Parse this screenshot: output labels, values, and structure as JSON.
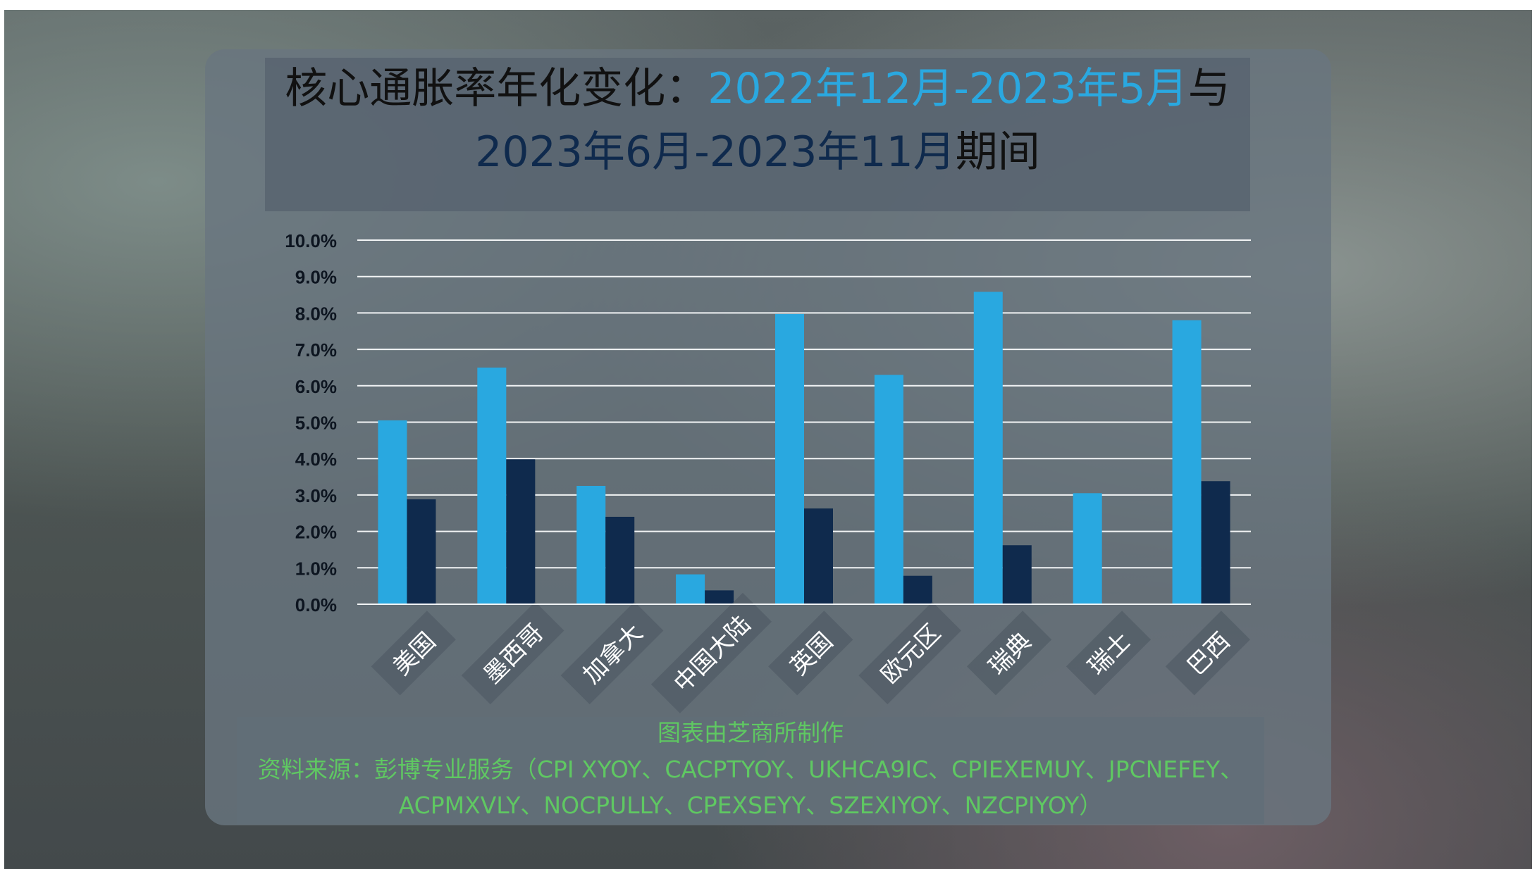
{
  "title": {
    "line1_prefix": "核心通胀率年化变化：",
    "line1_period1": "2022年12月-2023年5月",
    "line1_connector": "与",
    "line2_period2": "2023年6月-2023年11月",
    "line2_suffix": "期间"
  },
  "colors": {
    "period1": "#29a8e0",
    "period2": "#0f2a4d",
    "axis_label": "#0d1520",
    "source_text": "#5fc862"
  },
  "chart_data": {
    "type": "bar",
    "categories": [
      "美国",
      "墨西哥",
      "加拿大",
      "中国大陆",
      "英国",
      "欧元区",
      "瑞典",
      "瑞士",
      "巴西"
    ],
    "series": [
      {
        "values": [
          5.05,
          6.5,
          3.25,
          0.82,
          7.97,
          6.3,
          8.58,
          3.05,
          7.8
        ]
      },
      {
        "values": [
          2.88,
          3.98,
          2.4,
          0.38,
          2.63,
          0.78,
          1.62,
          0.0,
          3.38
        ]
      }
    ],
    "ylim": [
      0,
      10
    ],
    "yticks": [
      "0.0%",
      "1.0%",
      "2.0%",
      "3.0%",
      "4.0%",
      "5.0%",
      "6.0%",
      "7.0%",
      "8.0%",
      "9.0%",
      "10.0%"
    ],
    "grid": true,
    "legend": "none"
  },
  "source": {
    "credit": "图表由芝商所制作",
    "line1": "资料来源：彭博专业服务（CPI XYOY、CACPTYOY、UKHCA9IC、CPIEXEMUY、JPCNEFEY、",
    "line2": "ACPMXVLY、NOCPULLY、CPEXSEYY、SZEXIYOY、NZCPIYOY）"
  }
}
